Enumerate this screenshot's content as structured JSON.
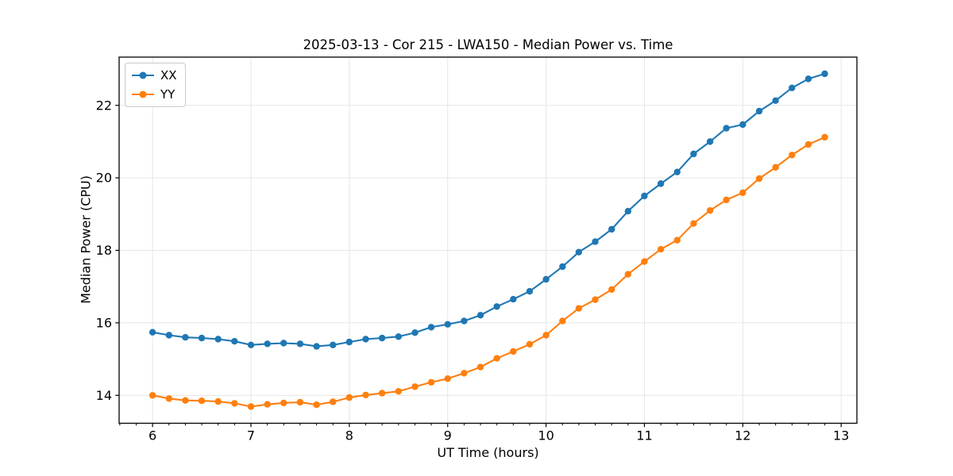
{
  "chart_data": {
    "type": "line",
    "title": "2025-03-13 - Cor 215 - LWA150 - Median Power vs. Time",
    "xlabel": "UT Time (hours)",
    "ylabel": "Median Power (CPU)",
    "xlim": [
      5.66,
      13.16
    ],
    "ylim": [
      13.23,
      23.33
    ],
    "xticks": [
      6,
      7,
      8,
      9,
      10,
      11,
      12,
      13
    ],
    "yticks": [
      14,
      16,
      18,
      20,
      22
    ],
    "x_minor_step": 0.16667,
    "grid": true,
    "grid_color": "#e6e6e6",
    "legend_position": "upper-left",
    "x": [
      6.0,
      6.167,
      6.333,
      6.5,
      6.667,
      6.833,
      7.0,
      7.167,
      7.333,
      7.5,
      7.667,
      7.833,
      8.0,
      8.167,
      8.333,
      8.5,
      8.667,
      8.833,
      9.0,
      9.167,
      9.333,
      9.5,
      9.667,
      9.833,
      10.0,
      10.167,
      10.333,
      10.5,
      10.667,
      10.833,
      11.0,
      11.167,
      11.333,
      11.5,
      11.667,
      11.833,
      12.0,
      12.167,
      12.333,
      12.5,
      12.667,
      12.833
    ],
    "series": [
      {
        "name": "XX",
        "color": "#1f77b4",
        "values": [
          15.74,
          15.66,
          15.6,
          15.58,
          15.55,
          15.49,
          15.39,
          15.42,
          15.44,
          15.42,
          15.35,
          15.39,
          15.47,
          15.55,
          15.58,
          15.62,
          15.73,
          15.88,
          15.96,
          16.05,
          16.21,
          16.45,
          16.65,
          16.87,
          17.2,
          17.55,
          17.95,
          18.24,
          18.58,
          19.08,
          19.5,
          19.84,
          20.16,
          20.66,
          21.0,
          21.37,
          21.47,
          21.84,
          22.13,
          22.48,
          22.73,
          22.87
        ]
      },
      {
        "name": "YY",
        "color": "#ff7f0e",
        "values": [
          14.0,
          13.91,
          13.86,
          13.85,
          13.83,
          13.78,
          13.69,
          13.75,
          13.79,
          13.81,
          13.74,
          13.82,
          13.94,
          14.01,
          14.06,
          14.11,
          14.24,
          14.36,
          14.46,
          14.61,
          14.78,
          15.02,
          15.21,
          15.41,
          15.66,
          16.05,
          16.4,
          16.64,
          16.92,
          17.34,
          17.69,
          18.03,
          18.28,
          18.74,
          19.1,
          19.39,
          19.59,
          19.98,
          20.29,
          20.63,
          20.92,
          21.12
        ]
      }
    ]
  }
}
